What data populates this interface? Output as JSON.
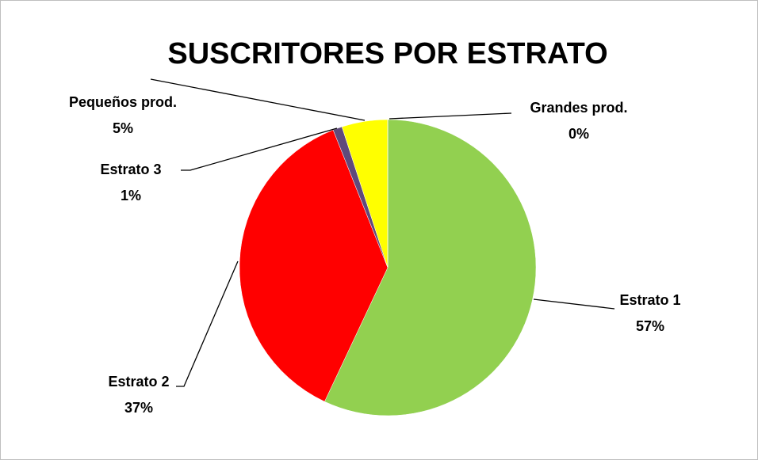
{
  "chart_data": {
    "type": "pie",
    "title": "SUSCRITORES POR ESTRATO",
    "categories": [
      "Estrato 1",
      "Estrato 2",
      "Estrato 3",
      "Pequeños prod.",
      "Grandes prod."
    ],
    "values": [
      57,
      37,
      1,
      5,
      0
    ],
    "value_labels": [
      "57%",
      "37%",
      "1%",
      "5%",
      "0%"
    ],
    "colors": [
      "#92d050",
      "#ff0000",
      "#604a7b",
      "#ffff00",
      "#4bacc6"
    ]
  }
}
